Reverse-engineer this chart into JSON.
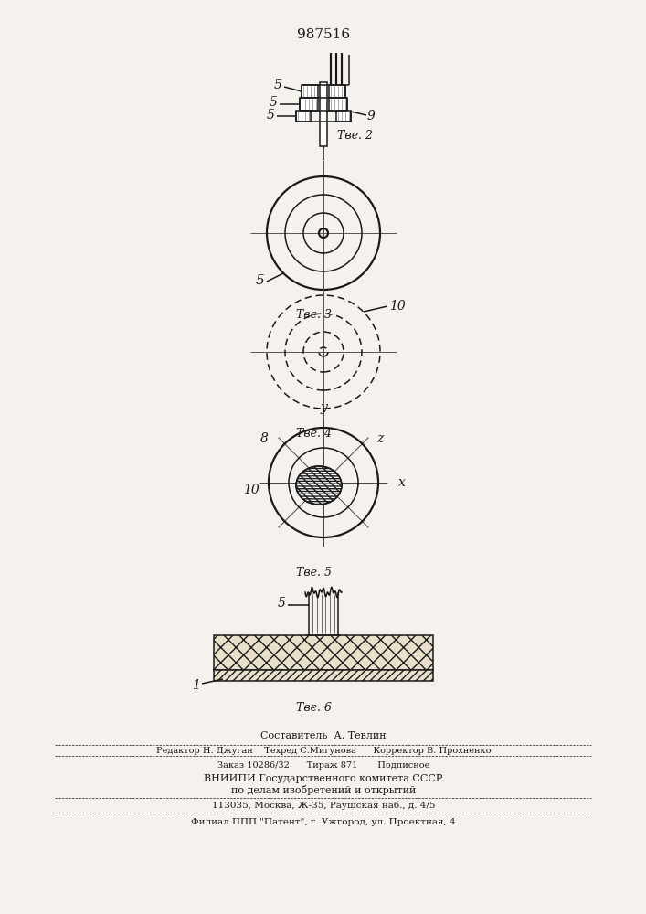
{
  "patent_number": "987516",
  "label_5": "5",
  "label_9": "9",
  "label_10": "10",
  "label_1": "1",
  "label_8": "8",
  "label_z": "z",
  "label_y": "y",
  "label_x": "x",
  "fig2_caption": "Τве. 2",
  "fig3_caption": "Τве. 3",
  "fig4_caption": "Τве. 4",
  "fig5_caption": "Τве. 5",
  "fig6_caption": "Τве. 6",
  "footer_line1": "Составитель  А. Тевлин",
  "footer_line2": "Редактор Н. Джуган    Техред С.Мигунова      Корректор В. Прохненко",
  "footer_line3": "Заказ 10286/32      Тираж 871       Подписное",
  "footer_line4": "ВНИИПИ Государственного комитета СССР",
  "footer_line5": "по делам изобретений и открытий",
  "footer_line6": "113035, Москва, Ж-35, Раушская наб., д. 4/5",
  "footer_line7": "Филиал ППП \"Патент\", г. Ужгород, ул. Проектная, 4",
  "bg_color": "#f5f2ee",
  "line_color": "#1a1a1a"
}
